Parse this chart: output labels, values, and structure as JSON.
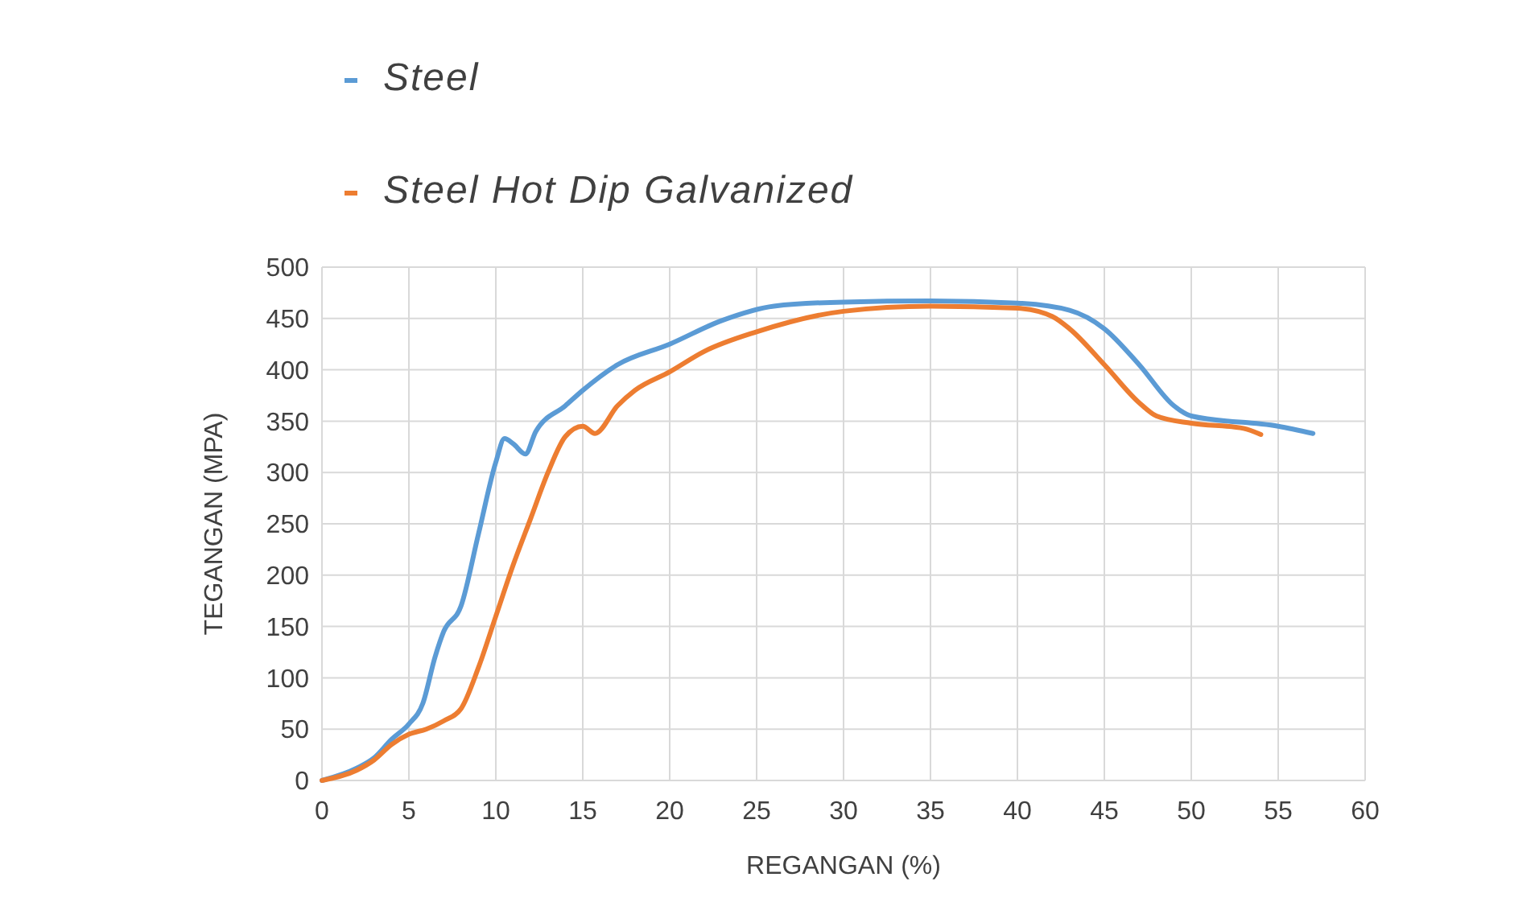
{
  "chart_data": {
    "type": "line",
    "xlabel": "REGANGAN (%)",
    "ylabel": "TEGANGAN (MPA)",
    "xlim": [
      0,
      60
    ],
    "ylim": [
      0,
      500
    ],
    "xticks": [
      0,
      5,
      10,
      15,
      20,
      25,
      30,
      35,
      40,
      45,
      50,
      55,
      60
    ],
    "yticks": [
      0,
      50,
      100,
      150,
      200,
      250,
      300,
      350,
      400,
      450,
      500
    ],
    "grid": true,
    "legend": "top left",
    "marker": "none",
    "line_style": "solid",
    "series": [
      {
        "name": "Steel",
        "color": "#5b9bd5",
        "x": [
          0,
          2,
          3,
          4,
          5,
          5.8,
          6.5,
          7,
          8,
          9,
          10,
          10.5,
          11,
          11.7,
          12.3,
          14,
          15,
          17,
          20,
          23,
          26,
          30,
          35,
          40,
          43,
          45,
          47,
          49,
          50,
          55,
          57
        ],
        "values": [
          0,
          12,
          22,
          40,
          55,
          75,
          120,
          145,
          170,
          240,
          310,
          333,
          328,
          318,
          340,
          365,
          380,
          405,
          425,
          448,
          462,
          466,
          467,
          465,
          458,
          440,
          405,
          365,
          355,
          345,
          338
        ]
      },
      {
        "name": "Steel Hot Dip Galvanized",
        "color": "#ed7d31",
        "x": [
          0,
          2,
          3,
          4,
          5,
          6,
          7,
          8,
          9,
          10,
          11,
          12,
          13,
          14,
          15,
          15.7,
          17,
          18,
          20,
          22,
          25,
          30,
          35,
          40,
          42,
          43,
          45,
          47,
          48,
          50,
          53,
          54
        ],
        "values": [
          0,
          10,
          20,
          35,
          45,
          50,
          58,
          70,
          110,
          160,
          210,
          255,
          300,
          335,
          345,
          338,
          365,
          380,
          398,
          418,
          437,
          457,
          462,
          460,
          452,
          440,
          405,
          368,
          355,
          348,
          343,
          337
        ]
      }
    ]
  }
}
